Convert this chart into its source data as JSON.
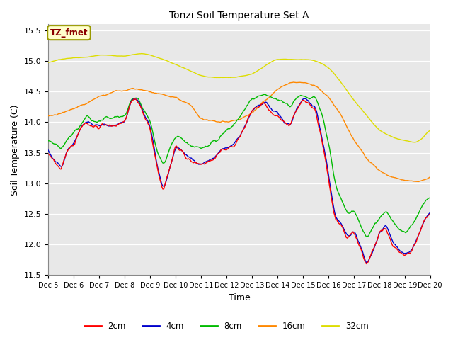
{
  "title": "Tonzi Soil Temperature Set A",
  "xlabel": "Time",
  "ylabel": "Soil Temperature (C)",
  "annotation": "TZ_fmet",
  "annotation_color": "#8B0000",
  "annotation_bg": "#FFFFCC",
  "annotation_border": "#999900",
  "ylim": [
    11.5,
    15.6
  ],
  "xlim": [
    0,
    360
  ],
  "bg_color": "#EBEBEB",
  "plot_bg": "#E8E8E8",
  "fig_bg": "#FFFFFF",
  "grid_color": "#FFFFFF",
  "xtick_labels": [
    "Dec 5",
    "Dec 6",
    "Dec 7",
    "Dec 8",
    "Dec 9",
    "Dec 10",
    "Dec 11",
    "Dec 12",
    "Dec 13",
    "Dec 14",
    "Dec 15",
    "Dec 16",
    "Dec 17",
    "Dec 18",
    "Dec 19",
    "Dec 20"
  ],
  "xtick_positions": [
    0,
    24,
    48,
    72,
    96,
    120,
    144,
    168,
    192,
    216,
    240,
    264,
    288,
    312,
    336,
    360
  ],
  "ytick_values": [
    11.5,
    12.0,
    12.5,
    13.0,
    13.5,
    14.0,
    14.5,
    15.0,
    15.5
  ],
  "line_colors": {
    "2cm": "#FF0000",
    "4cm": "#0000CC",
    "8cm": "#00BB00",
    "16cm": "#FF8800",
    "32cm": "#DDDD00"
  },
  "line_width": 1.0,
  "legend_labels": [
    "2cm",
    "4cm",
    "8cm",
    "16cm",
    "32cm"
  ]
}
